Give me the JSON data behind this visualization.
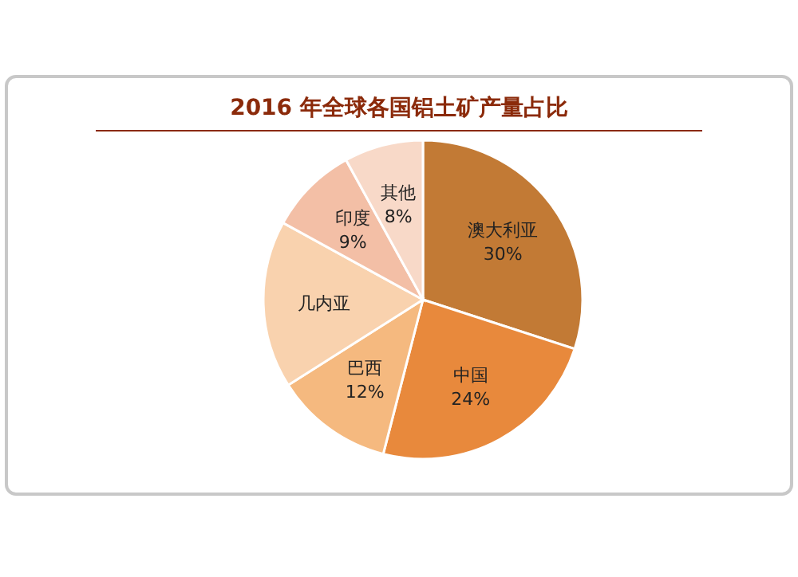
{
  "chart_data": {
    "type": "pie",
    "title": "2016 年全球各国铝土矿产量占比",
    "categories": [
      "澳大利亚",
      "中国",
      "巴西",
      "几内亚",
      "印度",
      "其他"
    ],
    "values": [
      30,
      24,
      12,
      17,
      9,
      8
    ],
    "value_labels": [
      "30%",
      "24%",
      "12%",
      null,
      "9%",
      "8%"
    ],
    "colors": [
      "#c27a35",
      "#e8893c",
      "#f5b97f",
      "#f9d2ae",
      "#f3bfa6",
      "#f8d9c8"
    ],
    "legend": false
  }
}
